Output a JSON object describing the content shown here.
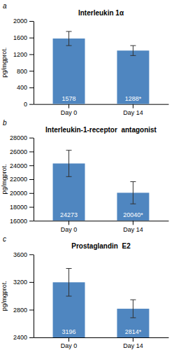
{
  "chart_data": [
    {
      "type": "bar",
      "title": "Interleukin 1α",
      "annotations": [
        "a"
      ],
      "ylabel": "pg/mgprot.",
      "categories": [
        "Day 0",
        "Day 14"
      ],
      "values": [
        1578,
        1288
      ],
      "errors": [
        170,
        120
      ],
      "value_labels": [
        "1578",
        "1288*"
      ],
      "data_labels": true,
      "color": "#4f86c0",
      "ylim": [
        0,
        2000
      ],
      "yticks": [
        0,
        400,
        800,
        1200,
        1600,
        2000
      ],
      "grid": false
    },
    {
      "type": "bar",
      "title": "Interleukin-1-receptor  antagonist",
      "annotations": [
        "b"
      ],
      "ylabel": "pg/mgprot.",
      "categories": [
        "Day 0",
        "Day 14"
      ],
      "values": [
        24273,
        20040
      ],
      "errors": [
        1900,
        1600
      ],
      "value_labels": [
        "24273",
        "20040*"
      ],
      "data_labels": true,
      "color": "#4f86c0",
      "ylim": [
        16000,
        28000
      ],
      "yticks": [
        16000,
        18000,
        20000,
        22000,
        24000,
        26000,
        28000
      ],
      "grid": false
    },
    {
      "type": "bar",
      "title": "Prostaglandin  E2",
      "annotations": [
        "c"
      ],
      "ylabel": "pg/mgprot.",
      "categories": [
        "Day 0",
        "Day 14"
      ],
      "values": [
        3196,
        2814
      ],
      "errors": [
        200,
        130
      ],
      "value_labels": [
        "3196",
        "2814*"
      ],
      "data_labels": true,
      "color": "#4f86c0",
      "ylim": [
        2400,
        3600
      ],
      "yticks": [
        2400,
        2800,
        3200,
        3600
      ],
      "grid": false
    }
  ]
}
